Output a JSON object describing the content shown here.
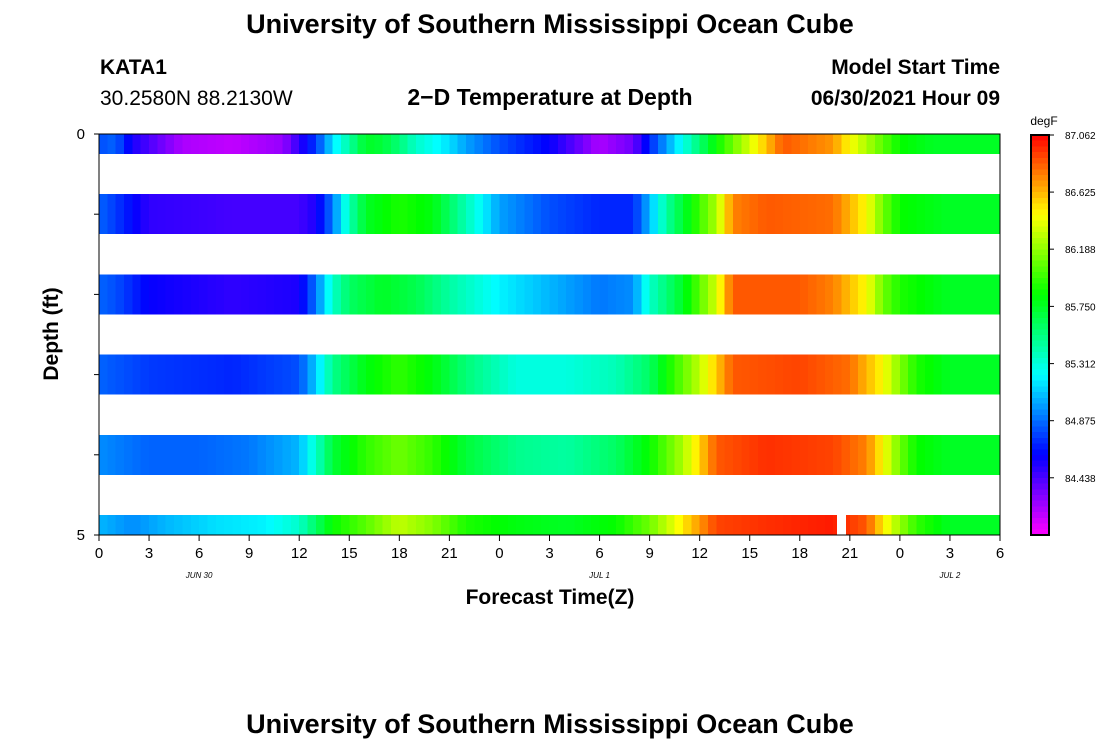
{
  "header": {
    "title": "University of Southern Mississippi Ocean Cube",
    "station": "KATA1",
    "coords": "30.2580N  88.2130W",
    "plot_title": "2−D Temperature at Depth",
    "start_label": "Model Start Time",
    "start_value": "06/30/2021 Hour 09"
  },
  "footer": {
    "title": "University of Southern Mississippi Ocean Cube"
  },
  "chart_data": {
    "type": "heatmap",
    "title": "2−D Temperature at Depth",
    "xlabel": "Forecast Time(Z)",
    "ylabel": "Depth (ft)",
    "x_tick_labels": [
      "0",
      "3",
      "6",
      "9",
      "12",
      "15",
      "18",
      "21",
      "0",
      "3",
      "6",
      "9",
      "12",
      "15",
      "18",
      "21",
      "0",
      "3",
      "6"
    ],
    "x_date_labels": [
      {
        "text": "JUN 30",
        "hour": 6
      },
      {
        "text": "JUL 1",
        "hour": 30
      },
      {
        "text": "JUL 2",
        "hour": 51
      }
    ],
    "x_range_hours": [
      0,
      54
    ],
    "y_tick_labels": [
      "0",
      "5"
    ],
    "y_range": [
      0,
      5
    ],
    "depth_levels": [
      0,
      1,
      2,
      3,
      4,
      5
    ],
    "colorbar": {
      "unit": "degF",
      "labels": [
        "87.062",
        "86.625",
        "86.188",
        "85.750",
        "85.312",
        "84.875",
        "84.438"
      ],
      "min": 84.0,
      "max": 87.062
    },
    "profiles": [
      {
        "depth": 0,
        "keys": [
          [
            0,
            84.8
          ],
          [
            1,
            84.85
          ],
          [
            2,
            84.55
          ],
          [
            5,
            84.2
          ],
          [
            8,
            84.15
          ],
          [
            11,
            84.25
          ],
          [
            13,
            84.75
          ],
          [
            14,
            85.15
          ],
          [
            15,
            85.45
          ],
          [
            16,
            85.75
          ],
          [
            17,
            85.7
          ],
          [
            18,
            85.55
          ],
          [
            19,
            85.35
          ],
          [
            20,
            85.25
          ],
          [
            21,
            85.15
          ],
          [
            22,
            85.0
          ],
          [
            24,
            84.8
          ],
          [
            27,
            84.6
          ],
          [
            30,
            84.2
          ],
          [
            32,
            84.35
          ],
          [
            33,
            84.7
          ],
          [
            37,
            85.85
          ],
          [
            41,
            86.85
          ],
          [
            44,
            86.7
          ],
          [
            45,
            86.45
          ],
          [
            46,
            86.25
          ],
          [
            48,
            85.85
          ],
          [
            50,
            85.75
          ],
          [
            54,
            85.75
          ]
        ]
      },
      {
        "depth": 1,
        "keys": [
          [
            0,
            84.85
          ],
          [
            1,
            84.75
          ],
          [
            3,
            84.5
          ],
          [
            8,
            84.45
          ],
          [
            12,
            84.45
          ],
          [
            13,
            84.55
          ],
          [
            14,
            84.9
          ],
          [
            15,
            85.4
          ],
          [
            16,
            85.75
          ],
          [
            18,
            85.9
          ],
          [
            20,
            85.8
          ],
          [
            22,
            85.4
          ],
          [
            24,
            85.0
          ],
          [
            27,
            84.8
          ],
          [
            30,
            84.7
          ],
          [
            32,
            84.7
          ],
          [
            33,
            85.05
          ],
          [
            34,
            85.45
          ],
          [
            37,
            86.25
          ],
          [
            38,
            86.75
          ],
          [
            40,
            86.85
          ],
          [
            44,
            86.8
          ],
          [
            46,
            86.45
          ],
          [
            47,
            86.1
          ],
          [
            48,
            85.85
          ],
          [
            51,
            85.75
          ],
          [
            54,
            85.75
          ]
        ]
      },
      {
        "depth": 2,
        "keys": [
          [
            0,
            84.85
          ],
          [
            1,
            84.8
          ],
          [
            3,
            84.6
          ],
          [
            8,
            84.5
          ],
          [
            12,
            84.55
          ],
          [
            13,
            84.9
          ],
          [
            14,
            85.35
          ],
          [
            15,
            85.6
          ],
          [
            17,
            85.75
          ],
          [
            19,
            85.65
          ],
          [
            21,
            85.45
          ],
          [
            24,
            85.2
          ],
          [
            27,
            85.05
          ],
          [
            30,
            84.9
          ],
          [
            32,
            84.95
          ],
          [
            33,
            85.35
          ],
          [
            35,
            85.75
          ],
          [
            37,
            86.35
          ],
          [
            38,
            86.85
          ],
          [
            42,
            86.85
          ],
          [
            44,
            86.75
          ],
          [
            46,
            86.45
          ],
          [
            47,
            86.1
          ],
          [
            48,
            85.9
          ],
          [
            51,
            85.75
          ],
          [
            54,
            85.75
          ]
        ]
      },
      {
        "depth": 3,
        "keys": [
          [
            0,
            84.85
          ],
          [
            3,
            84.75
          ],
          [
            8,
            84.7
          ],
          [
            12,
            84.8
          ],
          [
            13,
            85.1
          ],
          [
            14,
            85.5
          ],
          [
            16,
            85.8
          ],
          [
            18,
            85.95
          ],
          [
            20,
            85.8
          ],
          [
            22,
            85.55
          ],
          [
            25,
            85.3
          ],
          [
            28,
            85.3
          ],
          [
            31,
            85.4
          ],
          [
            33,
            85.6
          ],
          [
            34,
            85.85
          ],
          [
            36,
            86.3
          ],
          [
            38,
            86.85
          ],
          [
            42,
            86.9
          ],
          [
            45,
            86.8
          ],
          [
            47,
            86.45
          ],
          [
            48,
            86.15
          ],
          [
            49,
            85.9
          ],
          [
            51,
            85.75
          ],
          [
            54,
            85.75
          ]
        ]
      },
      {
        "depth": 4,
        "keys": [
          [
            0,
            84.95
          ],
          [
            3,
            84.85
          ],
          [
            6,
            84.85
          ],
          [
            9,
            84.9
          ],
          [
            12,
            85.05
          ],
          [
            13,
            85.35
          ],
          [
            14,
            85.7
          ],
          [
            16,
            85.95
          ],
          [
            18,
            86.1
          ],
          [
            20,
            85.95
          ],
          [
            22,
            85.7
          ],
          [
            25,
            85.5
          ],
          [
            28,
            85.45
          ],
          [
            31,
            85.6
          ],
          [
            33,
            85.85
          ],
          [
            35,
            86.25
          ],
          [
            37,
            86.85
          ],
          [
            40,
            86.95
          ],
          [
            44,
            86.9
          ],
          [
            46,
            86.75
          ],
          [
            47,
            86.45
          ],
          [
            48,
            86.1
          ],
          [
            49,
            85.85
          ],
          [
            51,
            85.75
          ],
          [
            54,
            85.75
          ]
        ]
      },
      {
        "depth": 5,
        "keys": [
          [
            0,
            85.05
          ],
          [
            2,
            84.95
          ],
          [
            4,
            85.05
          ],
          [
            7,
            85.15
          ],
          [
            10,
            85.2
          ],
          [
            12,
            85.35
          ],
          [
            13,
            85.6
          ],
          [
            14,
            85.85
          ],
          [
            16,
            86.05
          ],
          [
            18,
            86.3
          ],
          [
            20,
            86.15
          ],
          [
            22,
            85.9
          ],
          [
            25,
            85.8
          ],
          [
            28,
            85.75
          ],
          [
            31,
            85.85
          ],
          [
            33,
            86.1
          ],
          [
            35,
            86.5
          ],
          [
            37,
            86.9
          ],
          [
            40,
            86.95
          ],
          [
            44,
            87.0
          ],
          [
            46,
            86.85
          ],
          [
            47,
            86.5
          ],
          [
            48,
            86.2
          ],
          [
            49,
            85.95
          ],
          [
            51,
            85.75
          ],
          [
            54,
            85.75
          ]
        ]
      }
    ]
  }
}
